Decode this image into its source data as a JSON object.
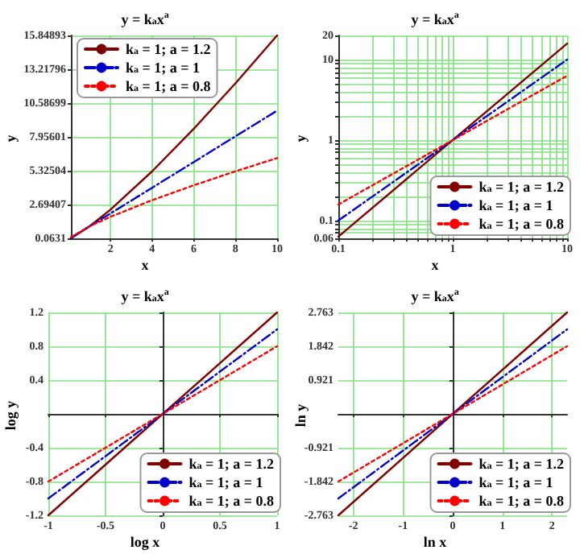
{
  "chart_data": [
    {
      "type": "line",
      "title": "y = k$_{a}$x$^{a}$",
      "xlabel": "x",
      "ylabel": "y",
      "xlim": [
        0.1,
        10
      ],
      "xticks": [
        2,
        4,
        6,
        8,
        10
      ],
      "ylim": [
        0.0631,
        15.84893
      ],
      "yticks": [
        0.0631,
        2.69407,
        5.32504,
        7.95601,
        10.58699,
        13.21796,
        15.84893
      ],
      "grid": true,
      "legend": "top left",
      "marker": "none",
      "series": [
        {
          "name": "k$_{a}$ = 1; a = 1.2",
          "color": "#800000",
          "line_style": "solid",
          "x": [
            0.1,
            1,
            2,
            4,
            6,
            8,
            10
          ],
          "values": [
            0.0631,
            1,
            2.297,
            5.278,
            8.586,
            12.125,
            15.84893
          ]
        },
        {
          "name": "k$_{a}$ = 1; a = 1",
          "color": "#0000cd",
          "line_style": "dashed",
          "x": [
            0.1,
            1,
            2,
            4,
            6,
            8,
            10
          ],
          "values": [
            0.1,
            1,
            2,
            4,
            6,
            8,
            10
          ]
        },
        {
          "name": "k$_{a}$ = 1; a = 0.8",
          "color": "#ff0000",
          "line_style": "dotted",
          "x": [
            0.1,
            1,
            2,
            4,
            6,
            8,
            10
          ],
          "values": [
            0.158,
            1,
            1.741,
            3.031,
            4.193,
            5.278,
            6.31
          ]
        }
      ]
    },
    {
      "type": "line",
      "title": "y = k$_{a}$x$^{a}$",
      "xlabel": "x",
      "ylabel": "y",
      "log": "xy",
      "xlim": [
        0.1,
        10
      ],
      "xticks": [
        0.1,
        {
          "value": 0.2,
          "label": null
        },
        {
          "value": 0.3,
          "label": null
        },
        {
          "value": 0.4,
          "label": null
        },
        {
          "value": 0.5,
          "label": null
        },
        {
          "value": 0.6,
          "label": null
        },
        {
          "value": 0.7,
          "label": null
        },
        {
          "value": 0.8,
          "label": null
        },
        {
          "value": 0.9,
          "label": null
        },
        1,
        {
          "value": 2,
          "label": null
        },
        {
          "value": 3,
          "label": null
        },
        {
          "value": 4,
          "label": null
        },
        {
          "value": 5,
          "label": null
        },
        {
          "value": 6,
          "label": null
        },
        {
          "value": 7,
          "label": null
        },
        {
          "value": 8,
          "label": null
        },
        {
          "value": 9,
          "label": null
        },
        10
      ],
      "ylim": [
        0.06,
        20
      ],
      "yticks": [
        0.06,
        {
          "value": 0.07,
          "label": null
        },
        {
          "value": 0.08,
          "label": null
        },
        {
          "value": 0.09,
          "label": null
        },
        0.1,
        {
          "value": 0.2,
          "label": null
        },
        {
          "value": 0.3,
          "label": null
        },
        {
          "value": 0.4,
          "label": null
        },
        {
          "value": 0.5,
          "label": null
        },
        {
          "value": 0.6,
          "label": null
        },
        {
          "value": 0.7,
          "label": null
        },
        {
          "value": 0.8,
          "label": null
        },
        {
          "value": 0.9,
          "label": null
        },
        1,
        {
          "value": 2,
          "label": null
        },
        {
          "value": 3,
          "label": null
        },
        {
          "value": 4,
          "label": null
        },
        {
          "value": 5,
          "label": null
        },
        {
          "value": 6,
          "label": null
        },
        {
          "value": 7,
          "label": null
        },
        {
          "value": 8,
          "label": null
        },
        {
          "value": 9,
          "label": null
        },
        10,
        20
      ],
      "grid": true,
      "legend": "bottom right",
      "marker": "none",
      "series": [
        {
          "name": "k$_{a}$ = 1; a = 1.2",
          "color": "#800000",
          "line_style": "solid",
          "x": [
            0.1,
            1,
            10
          ],
          "values": [
            0.0631,
            1,
            15.849
          ]
        },
        {
          "name": "k$_{a}$ = 1; a = 1",
          "color": "#0000cd",
          "line_style": "dashed",
          "x": [
            0.1,
            1,
            10
          ],
          "values": [
            0.1,
            1,
            10
          ]
        },
        {
          "name": "k$_{a}$ = 1; a = 0.8",
          "color": "#ff0000",
          "line_style": "dotted",
          "x": [
            0.1,
            1,
            10
          ],
          "values": [
            0.158,
            1,
            6.31
          ]
        }
      ]
    },
    {
      "type": "line",
      "title": "y = k$_{a}$x$^{a}$",
      "xlabel": "log x",
      "ylabel": "log y",
      "xlim": [
        -1,
        1
      ],
      "xticks": [
        -1,
        -0.5,
        0,
        0.5,
        1
      ],
      "ylim": [
        -1.2,
        1.2
      ],
      "yticks": [
        -1.2,
        -0.8,
        -0.4,
        0.4,
        0.8,
        1.2
      ],
      "grid": true,
      "legend": "bottom right",
      "marker": "none",
      "series": [
        {
          "name": "k$_{a}$ = 1; a = 1.2",
          "color": "#800000",
          "line_style": "solid",
          "x": [
            -1,
            0,
            1
          ],
          "values": [
            -1.2,
            0,
            1.2
          ]
        },
        {
          "name": "k$_{a}$ = 1; a = 1",
          "color": "#0000cd",
          "line_style": "dashed",
          "x": [
            -1,
            0,
            1
          ],
          "values": [
            -1,
            0,
            1
          ]
        },
        {
          "name": "k$_{a}$ = 1; a = 0.8",
          "color": "#ff0000",
          "line_style": "dotted",
          "x": [
            -1,
            0,
            1
          ],
          "values": [
            -0.8,
            0,
            0.8
          ]
        }
      ]
    },
    {
      "type": "line",
      "title": "y = k$_{a}$x$^{a}$",
      "xlabel": "ln x",
      "ylabel": "ln y",
      "xlim": [
        -2.303,
        2.303
      ],
      "xticks": [
        -2,
        -1,
        0,
        1,
        2
      ],
      "ylim": [
        -2.763,
        2.763
      ],
      "yticks": [
        -2.763,
        -1.842,
        -0.921,
        0.921,
        1.842,
        2.763
      ],
      "grid": true,
      "legend": "bottom right",
      "marker": "none",
      "series": [
        {
          "name": "k$_{a}$ = 1; a = 1.2",
          "color": "#800000",
          "line_style": "solid",
          "x": [
            -2.303,
            0,
            2.303
          ],
          "values": [
            -2.763,
            0,
            2.763
          ]
        },
        {
          "name": "k$_{a}$ = 1; a = 1",
          "color": "#0000cd",
          "line_style": "dashed",
          "x": [
            -2.303,
            0,
            2.303
          ],
          "values": [
            -2.303,
            0,
            2.303
          ]
        },
        {
          "name": "k$_{a}$ = 1; a = 0.8",
          "color": "#ff0000",
          "line_style": "dotted",
          "x": [
            -2.303,
            0,
            2.303
          ],
          "values": [
            -1.842,
            0,
            1.842
          ]
        }
      ]
    }
  ]
}
